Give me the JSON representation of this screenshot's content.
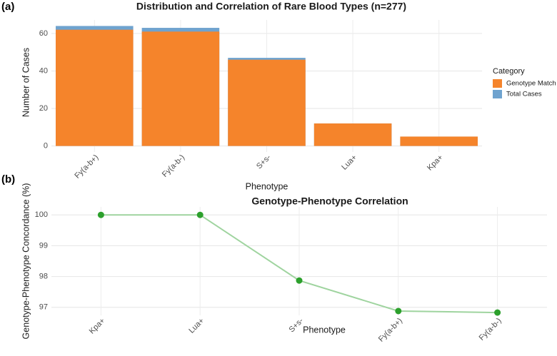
{
  "chart_data": [
    {
      "type": "bar",
      "panel_label": "(a)",
      "title": "Distribution and Correlation of Rare Blood Types (n=277)",
      "x_label": "Phenotype",
      "y_label": "Number of Cases",
      "legend_title": "Category",
      "categories": [
        "Fy(a-b+)",
        "Fy(a-b-)",
        "S+s-",
        "Lua+",
        "Kpa+"
      ],
      "series": [
        {
          "name": "Total Cases",
          "color": "#6fa3cf",
          "values": [
            64,
            63,
            47,
            12,
            5
          ]
        },
        {
          "name": "Genotype Match",
          "color": "#f5842b",
          "values": [
            62,
            61,
            46,
            12,
            5
          ]
        }
      ],
      "legend_order": [
        1,
        0
      ],
      "ylim": [
        -3.2,
        67.2
      ],
      "yticks": [
        0,
        20,
        40,
        60
      ],
      "grid": true
    },
    {
      "type": "line",
      "panel_label": "(b)",
      "title": "Genotype-Phenotype Correlation",
      "x_label": "Phenotype",
      "y_label": "Genotype-Phenotype Concordance (%)",
      "categories": [
        "Kpa+",
        "Lua+",
        "S+s-",
        "Fy(a-b+)",
        "Fy(a-b-)"
      ],
      "values": [
        100,
        100,
        97.87,
        96.88,
        96.83
      ],
      "color": "#9fd49f",
      "point_color": "#2ca02c",
      "ylim": [
        96.74,
        100.26
      ],
      "yticks": [
        97,
        98,
        99,
        100
      ],
      "grid": true
    }
  ]
}
